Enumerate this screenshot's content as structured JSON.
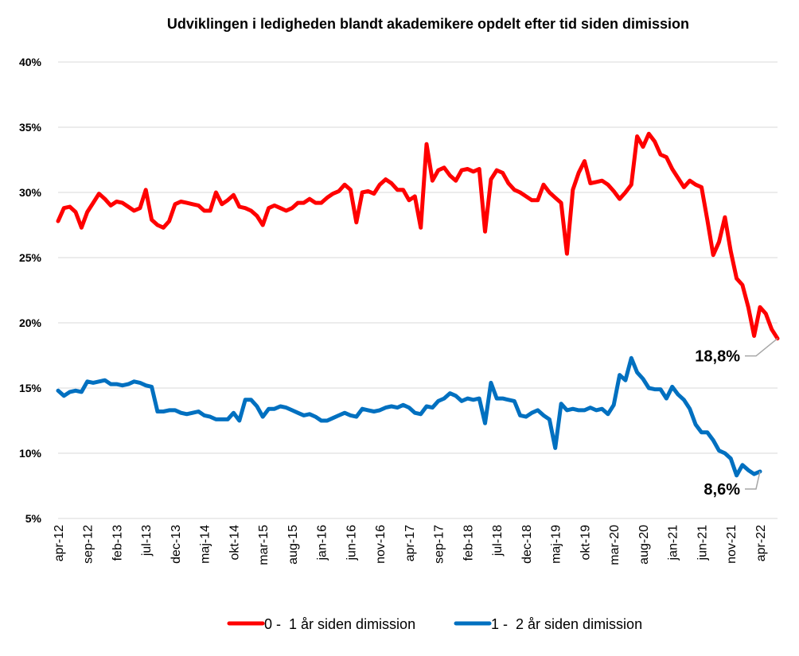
{
  "chart_data": {
    "type": "line",
    "title": "Udviklingen i ledigheden blandt akademikere opdelt efter tid siden dimission",
    "xlabel": "",
    "ylabel": "",
    "ylim": [
      0.05,
      0.4
    ],
    "y_ticks": [
      "5%",
      "10%",
      "15%",
      "20%",
      "25%",
      "30%",
      "35%",
      "40%"
    ],
    "x_tick_labels": [
      "apr-12",
      "sep-12",
      "feb-13",
      "jul-13",
      "dec-13",
      "maj-14",
      "okt-14",
      "mar-15",
      "aug-15",
      "jan-16",
      "jun-16",
      "nov-16",
      "apr-17",
      "sep-17",
      "feb-18",
      "jul-18",
      "dec-18",
      "maj-19",
      "okt-19",
      "mar-20",
      "aug-20",
      "jan-21",
      "jun-21",
      "nov-21",
      "apr-22"
    ],
    "x_start": "2012-04",
    "x_end": "2022-04",
    "grid": true,
    "legend_position": "bottom",
    "series": [
      {
        "name": "0 -  1 år siden dimission",
        "color": "#ff0000",
        "values": [
          0.278,
          0.288,
          0.289,
          0.285,
          0.273,
          0.285,
          0.292,
          0.299,
          0.295,
          0.29,
          0.293,
          0.292,
          0.289,
          0.286,
          0.288,
          0.302,
          0.279,
          0.275,
          0.273,
          0.278,
          0.291,
          0.293,
          0.292,
          0.291,
          0.29,
          0.286,
          0.286,
          0.3,
          0.291,
          0.294,
          0.298,
          0.289,
          0.288,
          0.286,
          0.282,
          0.275,
          0.288,
          0.29,
          0.288,
          0.286,
          0.288,
          0.292,
          0.292,
          0.295,
          0.292,
          0.292,
          0.296,
          0.299,
          0.301,
          0.306,
          0.302,
          0.277,
          0.3,
          0.301,
          0.299,
          0.306,
          0.31,
          0.307,
          0.302,
          0.302,
          0.294,
          0.297,
          0.273,
          0.337,
          0.309,
          0.317,
          0.319,
          0.313,
          0.309,
          0.317,
          0.318,
          0.316,
          0.318,
          0.27,
          0.31,
          0.317,
          0.315,
          0.307,
          0.302,
          0.3,
          0.297,
          0.294,
          0.294,
          0.306,
          0.3,
          0.296,
          0.292,
          0.253,
          0.302,
          0.315,
          0.324,
          0.307,
          0.308,
          0.309,
          0.306,
          0.301,
          0.295,
          0.3,
          0.306,
          0.343,
          0.335,
          0.345,
          0.339,
          0.329,
          0.327,
          0.318,
          0.311,
          0.304,
          0.309,
          0.306,
          0.304,
          0.279,
          0.252,
          0.262,
          0.281,
          0.255,
          0.234,
          0.229,
          0.212,
          0.19,
          0.212,
          0.207,
          0.195,
          0.188
        ]
      },
      {
        "name": "1 -  2 år siden dimission",
        "color": "#0070c0",
        "values": [
          0.148,
          0.144,
          0.147,
          0.148,
          0.147,
          0.155,
          0.154,
          0.155,
          0.156,
          0.153,
          0.153,
          0.152,
          0.153,
          0.155,
          0.154,
          0.152,
          0.151,
          0.132,
          0.132,
          0.133,
          0.133,
          0.131,
          0.13,
          0.131,
          0.132,
          0.129,
          0.128,
          0.126,
          0.126,
          0.126,
          0.131,
          0.125,
          0.141,
          0.141,
          0.136,
          0.128,
          0.134,
          0.134,
          0.136,
          0.135,
          0.133,
          0.131,
          0.129,
          0.13,
          0.128,
          0.125,
          0.125,
          0.127,
          0.129,
          0.131,
          0.129,
          0.128,
          0.134,
          0.133,
          0.132,
          0.133,
          0.135,
          0.136,
          0.135,
          0.137,
          0.135,
          0.131,
          0.13,
          0.136,
          0.135,
          0.14,
          0.142,
          0.146,
          0.144,
          0.14,
          0.142,
          0.141,
          0.142,
          0.123,
          0.154,
          0.142,
          0.142,
          0.141,
          0.14,
          0.129,
          0.128,
          0.131,
          0.133,
          0.129,
          0.126,
          0.104,
          0.138,
          0.133,
          0.134,
          0.133,
          0.133,
          0.135,
          0.133,
          0.134,
          0.13,
          0.137,
          0.16,
          0.156,
          0.173,
          0.162,
          0.157,
          0.15,
          0.149,
          0.149,
          0.142,
          0.151,
          0.145,
          0.141,
          0.134,
          0.122,
          0.116,
          0.116,
          0.11,
          0.102,
          0.1,
          0.096,
          0.083,
          0.091,
          0.087,
          0.084,
          0.086
        ]
      }
    ],
    "annotations": [
      {
        "series": 0,
        "text": "18,8%"
      },
      {
        "series": 1,
        "text": "8,6%"
      }
    ]
  }
}
